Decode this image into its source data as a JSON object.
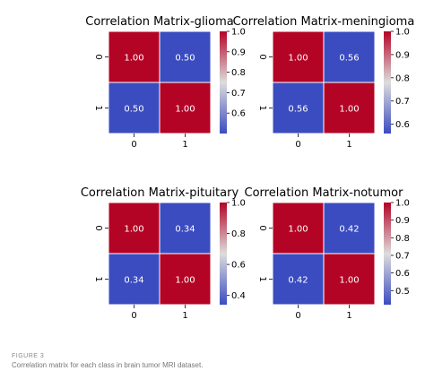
{
  "figure": {
    "label": "FIGURE 3",
    "caption": "Correlation matrix for each class in brain tumor MRI dataset."
  },
  "colors": {
    "high": "#b40426",
    "mid": "#dddddd",
    "low": "#3b4cc0",
    "annotation": "#ffffff",
    "cell_border": "#ffffff"
  },
  "chart_data": [
    {
      "type": "heatmap",
      "title": "Correlation Matrix-glioma",
      "x_tick_labels": [
        "0",
        "1"
      ],
      "y_tick_labels": [
        "0",
        "1"
      ],
      "values": [
        [
          1.0,
          0.5
        ],
        [
          0.5,
          1.0
        ]
      ],
      "annotations": [
        [
          "1.00",
          "0.50"
        ],
        [
          "0.50",
          "1.00"
        ]
      ],
      "colorbar": {
        "range": [
          0.5,
          1.0
        ],
        "ticks": [
          "0.6",
          "0.7",
          "0.8",
          "0.9",
          "1.0"
        ],
        "tick_values": [
          0.6,
          0.7,
          0.8,
          0.9,
          1.0
        ]
      },
      "colormap": "coolwarm"
    },
    {
      "type": "heatmap",
      "title": "Correlation Matrix-meningioma",
      "x_tick_labels": [
        "0",
        "1"
      ],
      "y_tick_labels": [
        "0",
        "1"
      ],
      "values": [
        [
          1.0,
          0.56
        ],
        [
          0.56,
          1.0
        ]
      ],
      "annotations": [
        [
          "1.00",
          "0.56"
        ],
        [
          "0.56",
          "1.00"
        ]
      ],
      "colorbar": {
        "range": [
          0.56,
          1.0
        ],
        "ticks": [
          "0.6",
          "0.7",
          "0.8",
          "0.9",
          "1.0"
        ],
        "tick_values": [
          0.6,
          0.7,
          0.8,
          0.9,
          1.0
        ]
      },
      "colormap": "coolwarm"
    },
    {
      "type": "heatmap",
      "title": "Correlation Matrix-pituitary",
      "x_tick_labels": [
        "0",
        "1"
      ],
      "y_tick_labels": [
        "0",
        "1"
      ],
      "values": [
        [
          1.0,
          0.34
        ],
        [
          0.34,
          1.0
        ]
      ],
      "annotations": [
        [
          "1.00",
          "0.34"
        ],
        [
          "0.34",
          "1.00"
        ]
      ],
      "colorbar": {
        "range": [
          0.34,
          1.0
        ],
        "ticks": [
          "0.4",
          "0.6",
          "0.8",
          "1.0"
        ],
        "tick_values": [
          0.4,
          0.6,
          0.8,
          1.0
        ]
      },
      "colormap": "coolwarm"
    },
    {
      "type": "heatmap",
      "title": "Correlation Matrix-notumor",
      "x_tick_labels": [
        "0",
        "1"
      ],
      "y_tick_labels": [
        "0",
        "1"
      ],
      "values": [
        [
          1.0,
          0.42
        ],
        [
          0.42,
          1.0
        ]
      ],
      "annotations": [
        [
          "1.00",
          "0.42"
        ],
        [
          "0.42",
          "1.00"
        ]
      ],
      "colorbar": {
        "range": [
          0.42,
          1.0
        ],
        "ticks": [
          "0.5",
          "0.6",
          "0.7",
          "0.8",
          "0.9",
          "1.0"
        ],
        "tick_values": [
          0.5,
          0.6,
          0.7,
          0.8,
          0.9,
          1.0
        ]
      },
      "colormap": "coolwarm"
    }
  ]
}
